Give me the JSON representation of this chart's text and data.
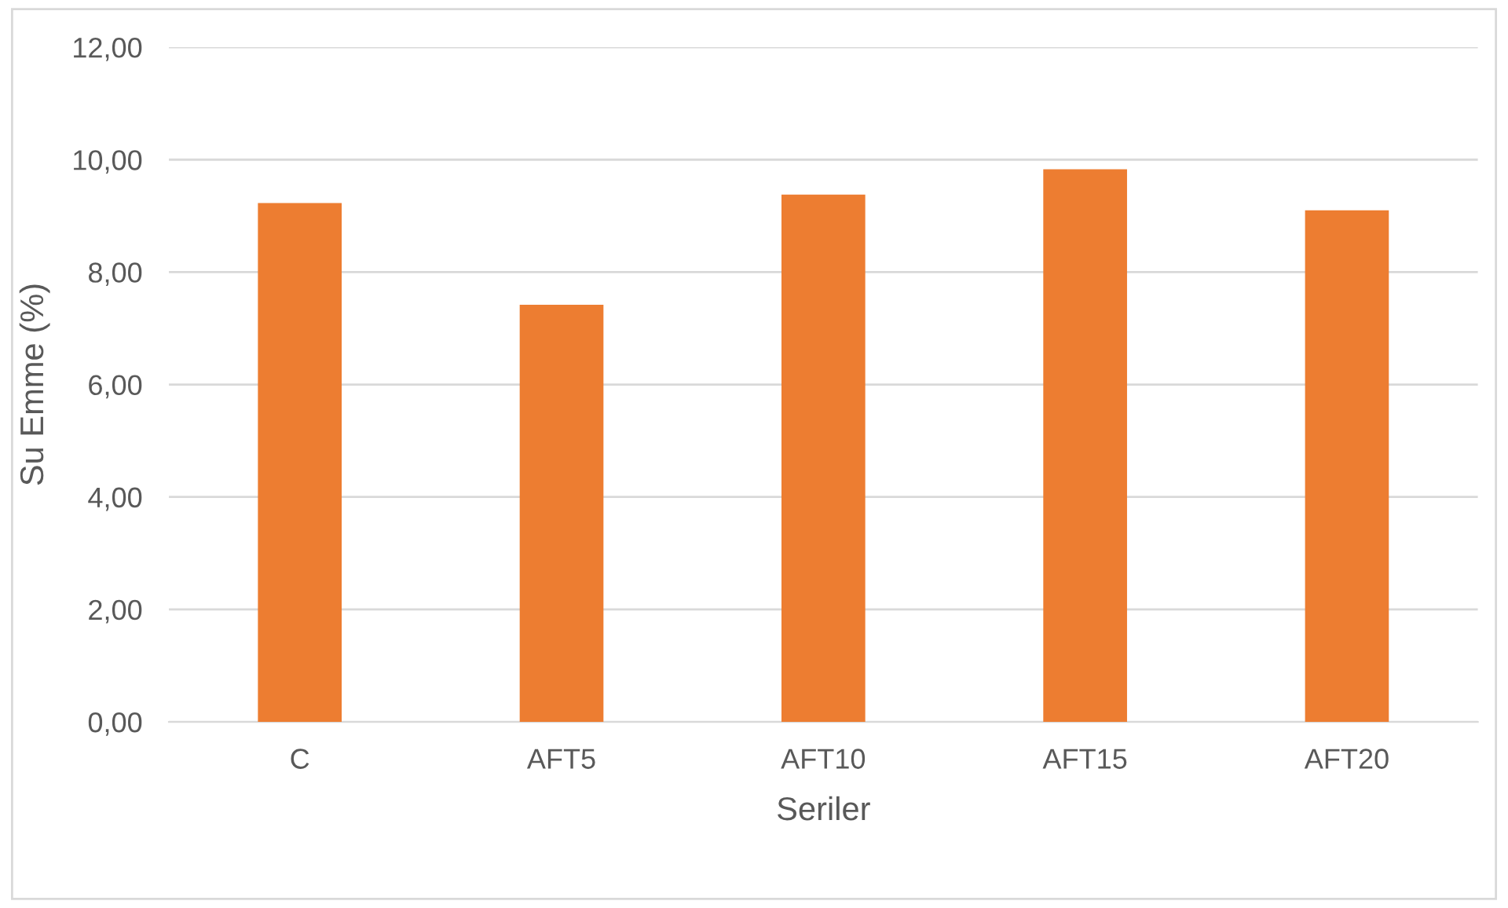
{
  "chart_data": {
    "type": "bar",
    "xlabel": "Seriler",
    "ylabel": "Su Emme (%)",
    "categories": [
      "C",
      "AFT5",
      "AFT10",
      "AFT15",
      "AFT20"
    ],
    "values": [
      9.23,
      7.42,
      9.38,
      9.83,
      9.1
    ],
    "color": "#ed7d31",
    "ylim": [
      0,
      12
    ],
    "yticks": [
      {
        "value": 0,
        "label": "0,00"
      },
      {
        "value": 2,
        "label": "2,00"
      },
      {
        "value": 4,
        "label": "4,00"
      },
      {
        "value": 6,
        "label": "6,00"
      },
      {
        "value": 8,
        "label": "8,00"
      },
      {
        "value": 10,
        "label": "10,00"
      },
      {
        "value": 12,
        "label": "12,00"
      }
    ],
    "grid": "y",
    "legend": false
  }
}
